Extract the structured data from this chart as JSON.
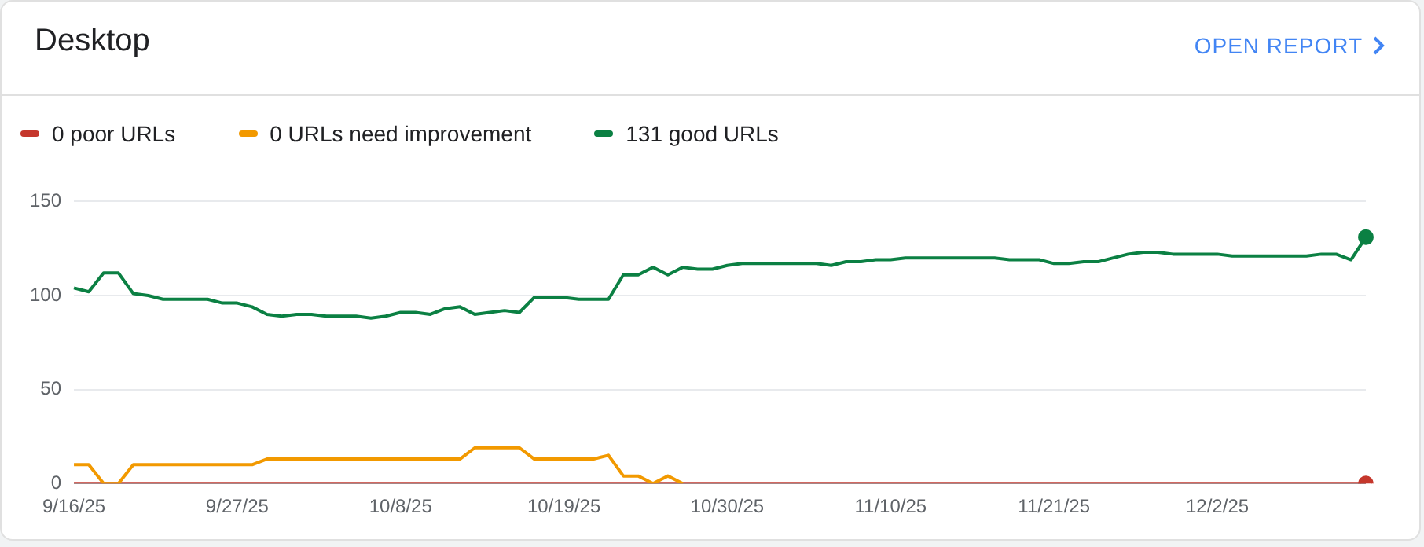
{
  "chart_data": {
    "type": "line",
    "title": "Desktop",
    "annotations": [
      "OPEN REPORT"
    ],
    "categories": [
      "9/16/25",
      null,
      null,
      null,
      null,
      null,
      null,
      null,
      null,
      null,
      null,
      "9/27/25",
      null,
      null,
      null,
      null,
      null,
      null,
      null,
      null,
      null,
      null,
      "10/8/25",
      null,
      null,
      null,
      null,
      null,
      null,
      null,
      null,
      null,
      null,
      "10/19/25",
      null,
      null,
      null,
      null,
      null,
      null,
      null,
      null,
      null,
      null,
      "10/30/25",
      null,
      null,
      null,
      null,
      null,
      null,
      null,
      null,
      null,
      null,
      "11/10/25",
      null,
      null,
      null,
      null,
      null,
      null,
      null,
      null,
      null,
      null,
      "11/21/25",
      null,
      null,
      null,
      null,
      null,
      null,
      null,
      null,
      null,
      null,
      "12/2/25",
      null,
      null,
      null,
      null,
      null,
      null,
      null,
      null,
      null,
      null
    ],
    "series": [
      {
        "name": "0 poor URLs",
        "color": "#c5372c",
        "values": [
          0,
          0,
          0,
          0,
          0,
          0,
          0,
          0,
          0,
          0,
          0,
          0,
          0,
          0,
          0,
          0,
          0,
          0,
          0,
          0,
          0,
          0,
          0,
          0,
          0,
          0,
          0,
          0,
          0,
          0,
          0,
          0,
          0,
          0,
          0,
          0,
          0,
          0,
          0,
          0,
          0,
          0,
          0,
          0,
          0,
          0,
          0,
          0,
          0,
          0,
          0,
          0,
          0,
          0,
          0,
          0,
          0,
          0,
          0,
          0,
          0,
          0,
          0,
          0,
          0,
          0,
          0,
          0,
          0,
          0,
          0,
          0,
          0,
          0,
          0,
          0,
          0,
          0,
          0,
          0,
          0,
          0,
          0,
          0,
          0,
          0,
          0,
          0
        ]
      },
      {
        "name": "0 URLs need improvement",
        "color": "#f29900",
        "values": [
          10,
          10,
          0,
          0,
          10,
          10,
          10,
          10,
          10,
          10,
          10,
          10,
          10,
          13,
          13,
          13,
          13,
          13,
          13,
          13,
          13,
          13,
          13,
          13,
          13,
          13,
          13,
          19,
          19,
          19,
          19,
          13,
          13,
          13,
          13,
          13,
          15,
          4,
          4,
          0,
          4,
          0,
          null,
          null,
          null,
          null,
          null,
          null,
          null,
          null,
          null,
          null,
          null,
          null,
          null,
          null,
          null,
          null,
          null,
          null,
          null,
          null,
          null,
          null,
          null,
          null,
          null,
          null,
          null,
          null,
          null,
          null,
          null,
          null,
          null,
          null,
          null,
          null,
          null,
          null,
          null,
          null,
          null,
          null,
          null,
          null,
          null,
          null
        ]
      },
      {
        "name": "131 good URLs",
        "color": "#0b8043",
        "values": [
          104,
          102,
          112,
          112,
          101,
          100,
          98,
          98,
          98,
          98,
          96,
          96,
          94,
          90,
          89,
          90,
          90,
          89,
          89,
          89,
          88,
          89,
          91,
          91,
          90,
          93,
          94,
          90,
          91,
          92,
          91,
          99,
          99,
          99,
          98,
          98,
          98,
          111,
          111,
          115,
          111,
          115,
          114,
          114,
          116,
          117,
          117,
          117,
          117,
          117,
          117,
          116,
          118,
          118,
          119,
          119,
          120,
          120,
          120,
          120,
          120,
          120,
          120,
          119,
          119,
          119,
          117,
          117,
          118,
          118,
          120,
          122,
          123,
          123,
          122,
          122,
          122,
          122,
          121,
          121,
          121,
          121,
          121,
          121,
          122,
          122,
          119,
          131
        ]
      }
    ],
    "ylim": [
      0,
      150
    ],
    "yticks": [
      0,
      50,
      100,
      150
    ],
    "grid": "y",
    "legend": "top left"
  }
}
